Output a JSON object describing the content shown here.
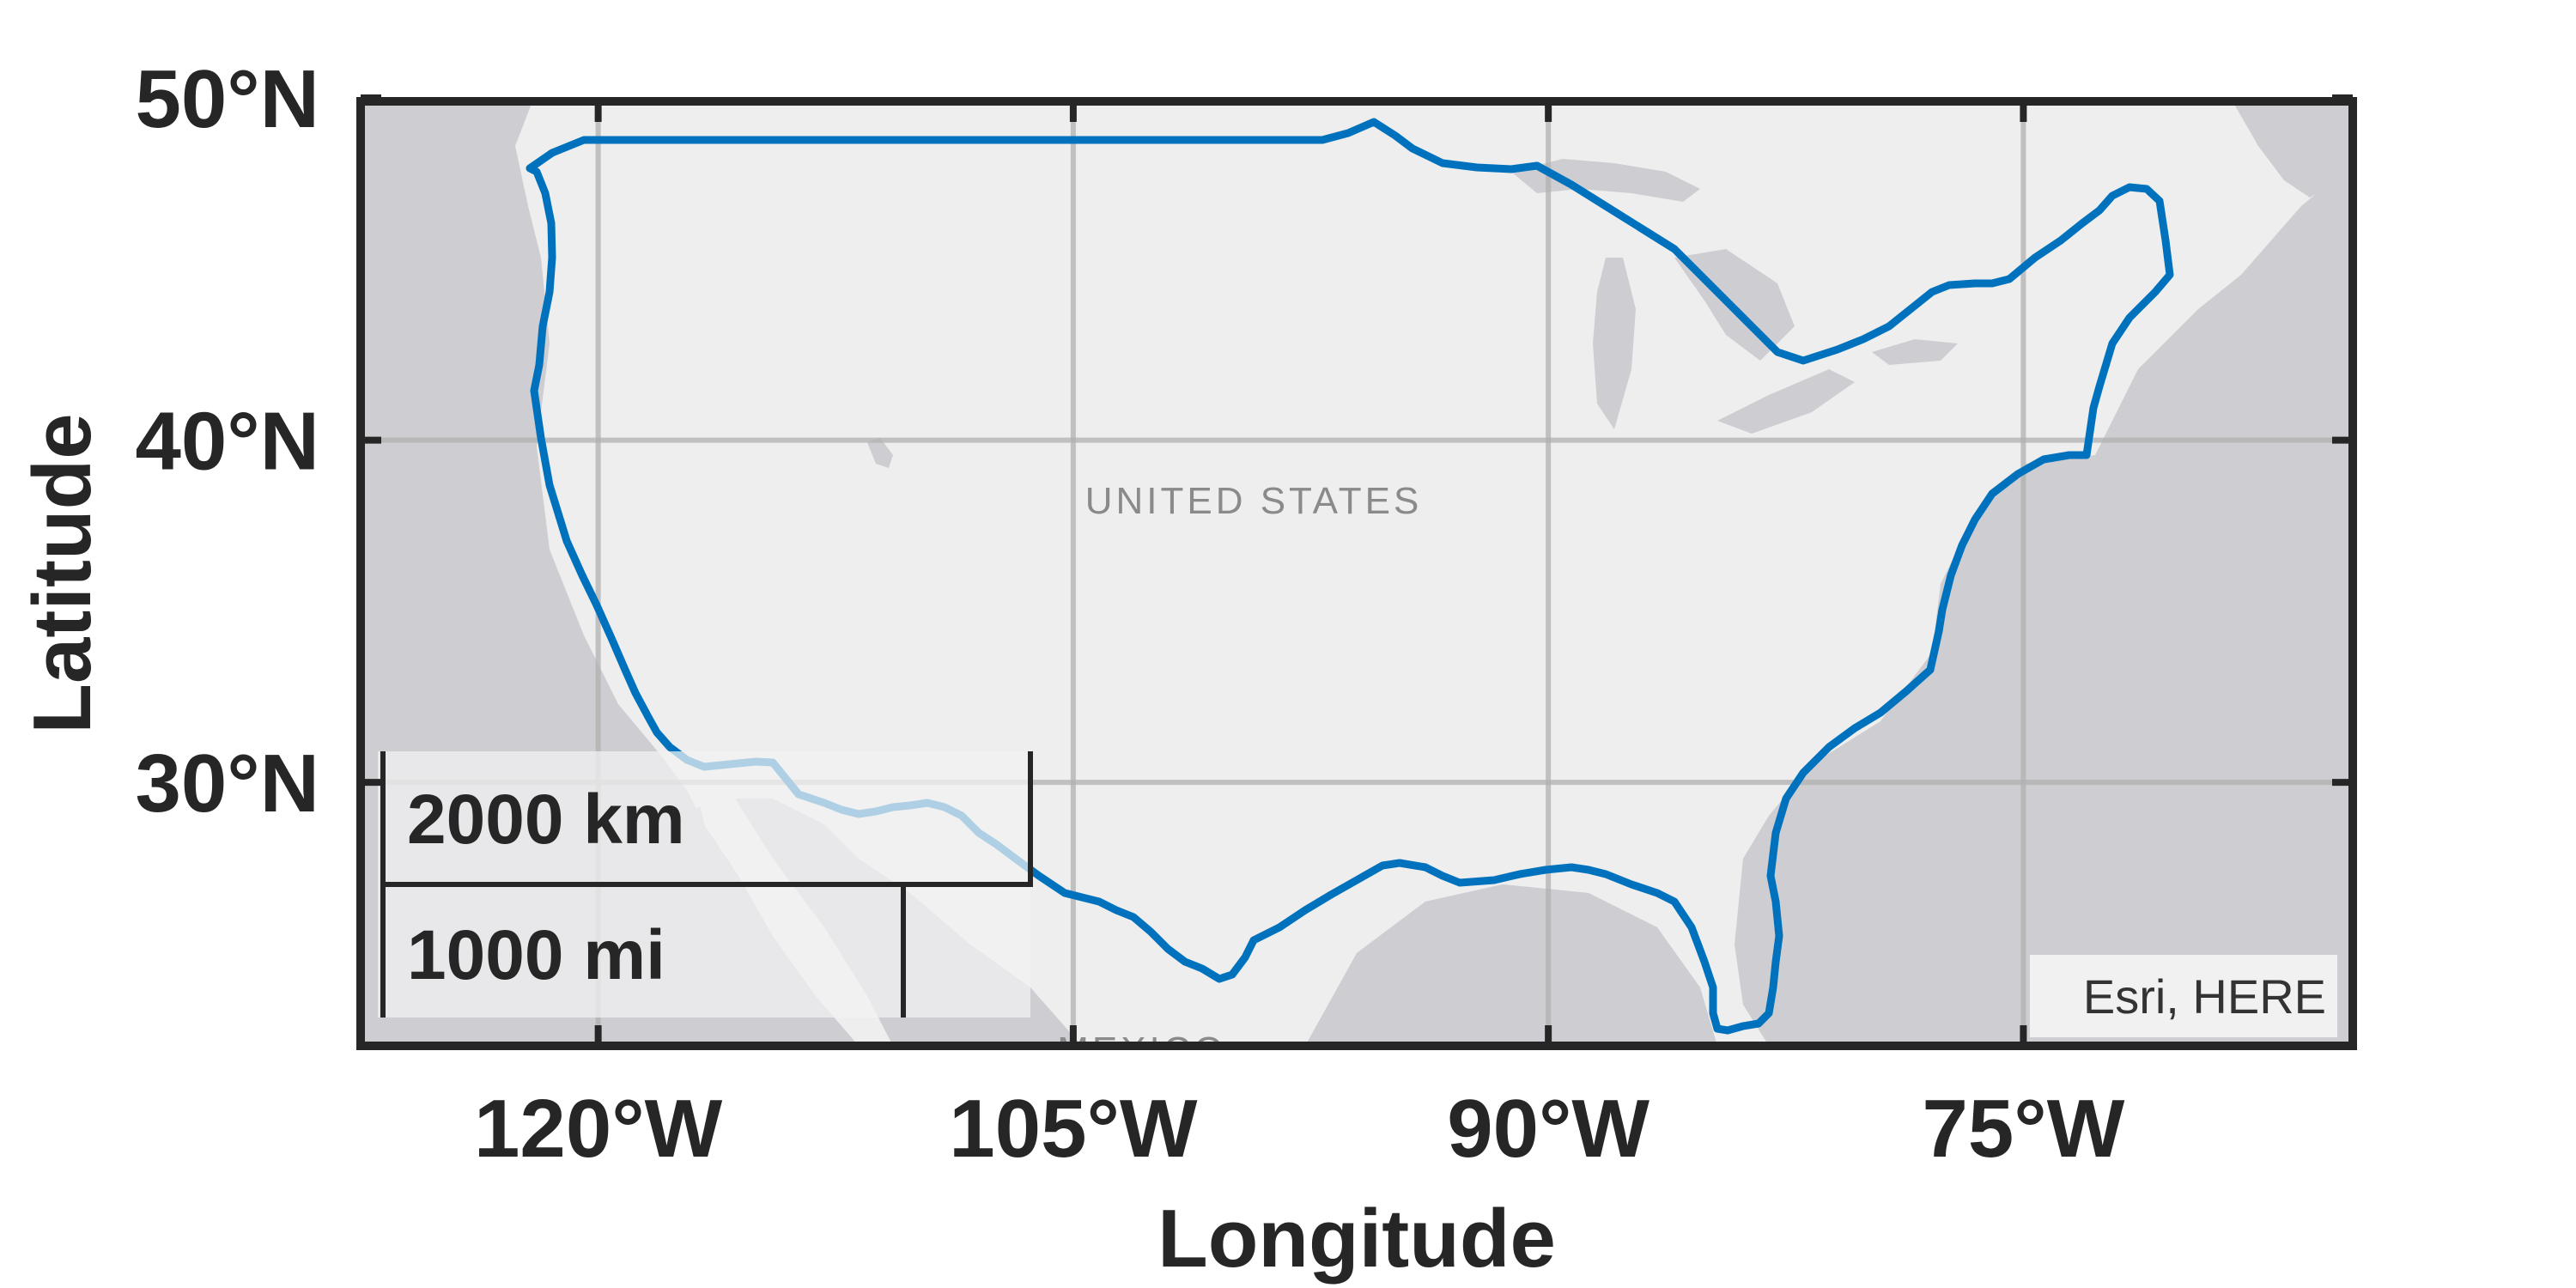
{
  "map": {
    "x_axis_label": "Longitude",
    "y_axis_label": "Latitude",
    "lon_range": [
      -127.5,
      -64.6
    ],
    "lat_range": [
      22.3,
      49.9
    ],
    "lon_ticks": [
      {
        "value": -120,
        "label": "120°W"
      },
      {
        "value": -105,
        "label": "105°W"
      },
      {
        "value": -90,
        "label": "90°W"
      },
      {
        "value": -75,
        "label": "75°W"
      }
    ],
    "lat_ticks": [
      {
        "value": 30,
        "label": "30°N"
      },
      {
        "value": 40,
        "label": "40°N"
      },
      {
        "value": 50,
        "label": "50°N"
      }
    ],
    "grid": true,
    "basemap_labels": {
      "country_main": "UNITED STATES",
      "country_south": "MEXICO"
    },
    "scale_bar": {
      "km_label": "2000 km",
      "mi_label": "1000 mi",
      "position": "bottom-left"
    },
    "attribution": "Esri, HERE",
    "colors": {
      "boundary_line": "#0072BD",
      "land": "#eeeeee",
      "water": "#cdcdd2",
      "frame": "#262626",
      "grid": "#b0b0b0"
    }
  }
}
